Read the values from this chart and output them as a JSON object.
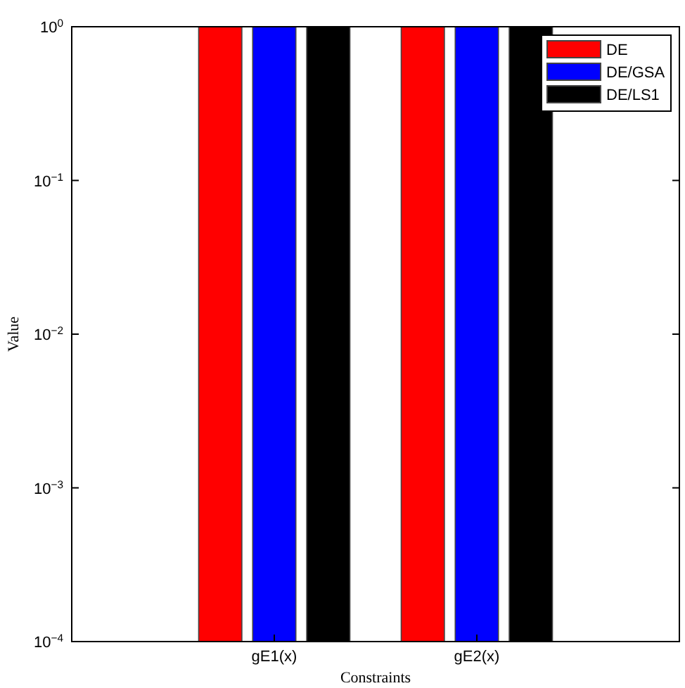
{
  "chart_data": {
    "type": "bar",
    "xlabel": "Constraints",
    "ylabel": "Value",
    "categories": [
      "gE1(x)",
      "gE2(x)"
    ],
    "series": [
      {
        "name": "DE",
        "color": "#ff0000",
        "values": [
          1,
          1
        ]
      },
      {
        "name": "DE/GSA",
        "color": "#0000ff",
        "values": [
          1,
          1
        ]
      },
      {
        "name": "DE/LS1",
        "color": "#000000",
        "values": [
          1,
          1
        ]
      }
    ],
    "log": true,
    "ylim": [
      0.0001,
      1
    ],
    "yticks": [
      {
        "value": 0.0001,
        "label": "10$^{−4}$"
      },
      {
        "value": 0.001,
        "label": "10$^{−3}$"
      },
      {
        "value": 0.01,
        "label": "10$^{−2}$"
      },
      {
        "value": 0.1,
        "label": "10$^{−1}$"
      },
      {
        "value": 1,
        "label": "10$^{0}$"
      }
    ],
    "grid": false,
    "legend": "top right"
  }
}
